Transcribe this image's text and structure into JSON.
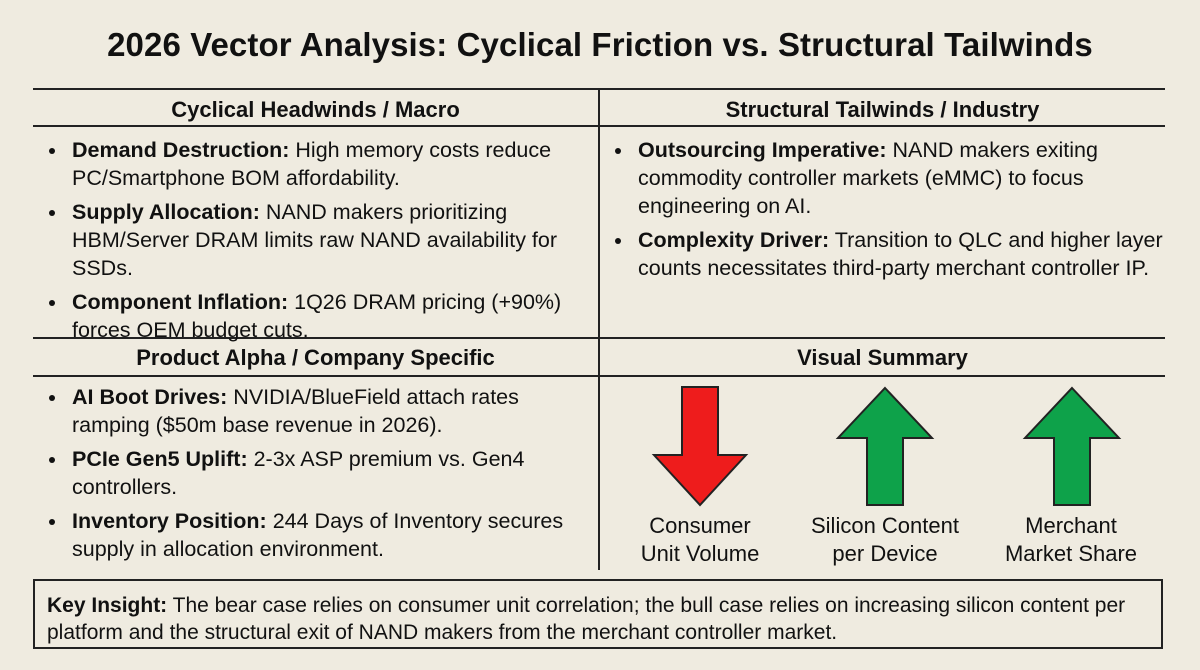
{
  "title": "2026 Vector Analysis: Cyclical Friction vs. Structural Tailwinds",
  "sections": {
    "headwinds": {
      "heading": "Cyclical Headwinds / Macro",
      "items": [
        {
          "term": "Demand Destruction:",
          "text": " High memory costs reduce PC/Smartphone BOM affordability."
        },
        {
          "term": "Supply Allocation:",
          "text": " NAND makers prioritizing HBM/Server DRAM limits raw NAND availability for SSDs."
        },
        {
          "term": "Component Inflation:",
          "text": " 1Q26 DRAM pricing (+90%) forces OEM budget cuts."
        }
      ]
    },
    "tailwinds": {
      "heading": "Structural Tailwinds / Industry",
      "items": [
        {
          "term": "Outsourcing Imperative:",
          "text": " NAND makers exiting commodity controller markets (eMMC) to focus engineering on AI."
        },
        {
          "term": "Complexity Driver:",
          "text": " Transition to QLC and higher layer counts necessitates third-party merchant controller IP."
        }
      ]
    },
    "alpha": {
      "heading": "Product Alpha / Company Specific",
      "items": [
        {
          "term": "AI Boot Drives:",
          "text": " NVIDIA/BlueField attach rates ramping ($50m base revenue in 2026)."
        },
        {
          "term": "PCIe Gen5 Uplift:",
          "text": " 2-3x ASP premium vs. Gen4 controllers."
        },
        {
          "term": "Inventory Position:",
          "text": " 244 Days of Inventory secures supply in allocation environment."
        }
      ]
    },
    "summary": {
      "heading": "Visual Summary",
      "arrows": [
        {
          "direction": "down",
          "color": "#ee1c1c",
          "label_line1": "Consumer",
          "label_line2": "Unit Volume"
        },
        {
          "direction": "up",
          "color": "#0ea24a",
          "label_line1": "Silicon Content",
          "label_line2": "per Device"
        },
        {
          "direction": "up",
          "color": "#0ea24a",
          "label_line1": "Merchant",
          "label_line2": "Market Share"
        }
      ]
    }
  },
  "insight": {
    "term": "Key Insight:",
    "text": " The bear case relies on consumer unit correlation; the bull case relies on increasing silicon content per platform and the structural exit of NAND makers from the merchant controller market."
  }
}
